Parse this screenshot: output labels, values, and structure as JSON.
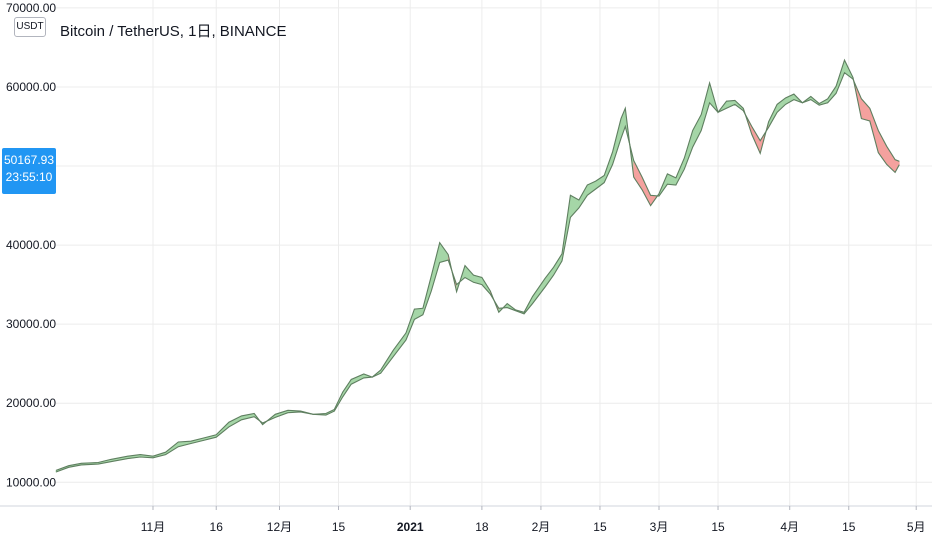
{
  "symbol": {
    "title": "Bitcoin / TetherUS, 1日, BINANCE",
    "currency": "USDT"
  },
  "price_label": {
    "value": "50167.93",
    "countdown": "23:55:10"
  },
  "colors": {
    "up_fill": "#a5d6a7",
    "down_fill": "#f4a19e",
    "line": "#5f7f60",
    "price_label_bg": "#2196f3"
  },
  "chart_data": {
    "type": "area",
    "x_axis": {
      "type": "date",
      "range": [
        "2020-10-09",
        "2021-04-30"
      ],
      "ticks": [
        {
          "date": "2020-11-01",
          "label": "11月",
          "bold": false
        },
        {
          "date": "2020-11-16",
          "label": "16",
          "bold": false
        },
        {
          "date": "2020-12-01",
          "label": "12月",
          "bold": false
        },
        {
          "date": "2020-12-15",
          "label": "15",
          "bold": false
        },
        {
          "date": "2021-01-01",
          "label": "2021",
          "bold": true
        },
        {
          "date": "2021-01-18",
          "label": "18",
          "bold": false
        },
        {
          "date": "2021-02-01",
          "label": "2月",
          "bold": false
        },
        {
          "date": "2021-02-15",
          "label": "15",
          "bold": false
        },
        {
          "date": "2021-03-01",
          "label": "3月",
          "bold": false
        },
        {
          "date": "2021-03-15",
          "label": "15",
          "bold": false
        },
        {
          "date": "2021-04-01",
          "label": "4月",
          "bold": false
        },
        {
          "date": "2021-04-15",
          "label": "15",
          "bold": false
        },
        {
          "date": "2021-05-01",
          "label": "5月",
          "bold": false
        }
      ]
    },
    "y_axis": {
      "range": [
        7000,
        71000
      ],
      "ticks": [
        {
          "value": 10000,
          "label": "10000.00"
        },
        {
          "value": 20000,
          "label": "20000.00"
        },
        {
          "value": 30000,
          "label": "30000.00"
        },
        {
          "value": 40000,
          "label": "40000.00"
        },
        {
          "value": 50000,
          "label": "50000.00"
        },
        {
          "value": 60000,
          "label": "60000.00"
        },
        {
          "value": 70000,
          "label": "70000.00"
        }
      ]
    },
    "grid": true,
    "series": [
      {
        "role": "fast",
        "points": [
          [
            "2020-10-09",
            11500
          ],
          [
            "2020-10-12",
            12100
          ],
          [
            "2020-10-15",
            12400
          ],
          [
            "2020-10-19",
            12500
          ],
          [
            "2020-10-22",
            12900
          ],
          [
            "2020-10-26",
            13300
          ],
          [
            "2020-10-29",
            13500
          ],
          [
            "2020-11-01",
            13300
          ],
          [
            "2020-11-04",
            13800
          ],
          [
            "2020-11-07",
            15100
          ],
          [
            "2020-11-10",
            15200
          ],
          [
            "2020-11-13",
            15600
          ],
          [
            "2020-11-16",
            16000
          ],
          [
            "2020-11-19",
            17600
          ],
          [
            "2020-11-22",
            18400
          ],
          [
            "2020-11-25",
            18700
          ],
          [
            "2020-11-27",
            17300
          ],
          [
            "2020-11-30",
            18600
          ],
          [
            "2020-12-03",
            19100
          ],
          [
            "2020-12-06",
            19000
          ],
          [
            "2020-12-09",
            18600
          ],
          [
            "2020-12-12",
            18700
          ],
          [
            "2020-12-14",
            19200
          ],
          [
            "2020-12-16",
            21400
          ],
          [
            "2020-12-18",
            23000
          ],
          [
            "2020-12-21",
            23700
          ],
          [
            "2020-12-23",
            23300
          ],
          [
            "2020-12-25",
            24200
          ],
          [
            "2020-12-28",
            26700
          ],
          [
            "2020-12-31",
            28900
          ],
          [
            "2021-01-02",
            31900
          ],
          [
            "2021-01-04",
            32000
          ],
          [
            "2021-01-06",
            36100
          ],
          [
            "2021-01-08",
            40300
          ],
          [
            "2021-01-10",
            38800
          ],
          [
            "2021-01-12",
            34100
          ],
          [
            "2021-01-14",
            37400
          ],
          [
            "2021-01-16",
            36200
          ],
          [
            "2021-01-18",
            35900
          ],
          [
            "2021-01-20",
            34200
          ],
          [
            "2021-01-22",
            31500
          ],
          [
            "2021-01-24",
            32600
          ],
          [
            "2021-01-26",
            31800
          ],
          [
            "2021-01-28",
            31500
          ],
          [
            "2021-01-30",
            33500
          ],
          [
            "2021-02-02",
            35800
          ],
          [
            "2021-02-04",
            37200
          ],
          [
            "2021-02-06",
            38900
          ],
          [
            "2021-02-08",
            46300
          ],
          [
            "2021-02-10",
            45700
          ],
          [
            "2021-02-12",
            47600
          ],
          [
            "2021-02-14",
            48100
          ],
          [
            "2021-02-16",
            48800
          ],
          [
            "2021-02-18",
            51800
          ],
          [
            "2021-02-20",
            56000
          ],
          [
            "2021-02-21",
            57300
          ],
          [
            "2021-02-23",
            48600
          ],
          [
            "2021-02-25",
            47000
          ],
          [
            "2021-02-27",
            45000
          ],
          [
            "2021-03-01",
            46500
          ],
          [
            "2021-03-03",
            49000
          ],
          [
            "2021-03-05",
            48500
          ],
          [
            "2021-03-07",
            51000
          ],
          [
            "2021-03-09",
            54500
          ],
          [
            "2021-03-11",
            56500
          ],
          [
            "2021-03-13",
            60500
          ],
          [
            "2021-03-15",
            56800
          ],
          [
            "2021-03-17",
            58200
          ],
          [
            "2021-03-19",
            58300
          ],
          [
            "2021-03-21",
            57300
          ],
          [
            "2021-03-23",
            54000
          ],
          [
            "2021-03-25",
            51600
          ],
          [
            "2021-03-27",
            55600
          ],
          [
            "2021-03-29",
            57800
          ],
          [
            "2021-03-31",
            58600
          ],
          [
            "2021-04-02",
            59100
          ],
          [
            "2021-04-04",
            58000
          ],
          [
            "2021-04-06",
            58800
          ],
          [
            "2021-04-08",
            57900
          ],
          [
            "2021-04-10",
            58500
          ],
          [
            "2021-04-12",
            60100
          ],
          [
            "2021-04-14",
            63400
          ],
          [
            "2021-04-16",
            61200
          ],
          [
            "2021-04-18",
            56000
          ],
          [
            "2021-04-20",
            55700
          ],
          [
            "2021-04-22",
            51700
          ],
          [
            "2021-04-24",
            50200
          ],
          [
            "2021-04-26",
            49200
          ],
          [
            "2021-04-27",
            50168
          ]
        ]
      },
      {
        "role": "slow",
        "points": [
          [
            "2020-10-09",
            11300
          ],
          [
            "2020-10-12",
            11900
          ],
          [
            "2020-10-15",
            12200
          ],
          [
            "2020-10-19",
            12300
          ],
          [
            "2020-10-22",
            12600
          ],
          [
            "2020-10-26",
            13000
          ],
          [
            "2020-10-29",
            13200
          ],
          [
            "2020-11-01",
            13100
          ],
          [
            "2020-11-04",
            13500
          ],
          [
            "2020-11-07",
            14500
          ],
          [
            "2020-11-10",
            14900
          ],
          [
            "2020-11-13",
            15300
          ],
          [
            "2020-11-16",
            15700
          ],
          [
            "2020-11-19",
            17000
          ],
          [
            "2020-11-22",
            17900
          ],
          [
            "2020-11-25",
            18300
          ],
          [
            "2020-11-27",
            17500
          ],
          [
            "2020-11-30",
            18200
          ],
          [
            "2020-12-03",
            18800
          ],
          [
            "2020-12-06",
            18900
          ],
          [
            "2020-12-09",
            18600
          ],
          [
            "2020-12-12",
            18500
          ],
          [
            "2020-12-14",
            19000
          ],
          [
            "2020-12-16",
            20800
          ],
          [
            "2020-12-18",
            22400
          ],
          [
            "2020-12-21",
            23200
          ],
          [
            "2020-12-23",
            23300
          ],
          [
            "2020-12-25",
            23800
          ],
          [
            "2020-12-28",
            25900
          ],
          [
            "2020-12-31",
            28000
          ],
          [
            "2021-01-02",
            30600
          ],
          [
            "2021-01-04",
            31200
          ],
          [
            "2021-01-06",
            34200
          ],
          [
            "2021-01-08",
            37800
          ],
          [
            "2021-01-10",
            38100
          ],
          [
            "2021-01-12",
            35000
          ],
          [
            "2021-01-14",
            35900
          ],
          [
            "2021-01-16",
            35300
          ],
          [
            "2021-01-18",
            35000
          ],
          [
            "2021-01-20",
            33800
          ],
          [
            "2021-01-22",
            32000
          ],
          [
            "2021-01-24",
            32100
          ],
          [
            "2021-01-26",
            31700
          ],
          [
            "2021-01-28",
            31300
          ],
          [
            "2021-01-30",
            32600
          ],
          [
            "2021-02-02",
            34700
          ],
          [
            "2021-02-04",
            36200
          ],
          [
            "2021-02-06",
            38000
          ],
          [
            "2021-02-08",
            43500
          ],
          [
            "2021-02-10",
            44700
          ],
          [
            "2021-02-12",
            46300
          ],
          [
            "2021-02-14",
            47100
          ],
          [
            "2021-02-16",
            47900
          ],
          [
            "2021-02-18",
            50200
          ],
          [
            "2021-02-20",
            53500
          ],
          [
            "2021-02-21",
            55000
          ],
          [
            "2021-02-23",
            50700
          ],
          [
            "2021-02-25",
            48600
          ],
          [
            "2021-02-27",
            46300
          ],
          [
            "2021-03-01",
            46200
          ],
          [
            "2021-03-03",
            47700
          ],
          [
            "2021-03-05",
            47600
          ],
          [
            "2021-03-07",
            49600
          ],
          [
            "2021-03-09",
            52400
          ],
          [
            "2021-03-11",
            54500
          ],
          [
            "2021-03-13",
            58000
          ],
          [
            "2021-03-15",
            56800
          ],
          [
            "2021-03-17",
            57300
          ],
          [
            "2021-03-19",
            57800
          ],
          [
            "2021-03-21",
            57000
          ],
          [
            "2021-03-23",
            55000
          ],
          [
            "2021-03-25",
            53200
          ],
          [
            "2021-03-27",
            54900
          ],
          [
            "2021-03-29",
            56800
          ],
          [
            "2021-03-31",
            57800
          ],
          [
            "2021-04-02",
            58400
          ],
          [
            "2021-04-04",
            58000
          ],
          [
            "2021-04-06",
            58400
          ],
          [
            "2021-04-08",
            57700
          ],
          [
            "2021-04-10",
            58000
          ],
          [
            "2021-04-12",
            59200
          ],
          [
            "2021-04-14",
            61800
          ],
          [
            "2021-04-16",
            61000
          ],
          [
            "2021-04-18",
            58500
          ],
          [
            "2021-04-20",
            57300
          ],
          [
            "2021-04-22",
            54500
          ],
          [
            "2021-04-24",
            52500
          ],
          [
            "2021-04-26",
            50800
          ],
          [
            "2021-04-27",
            50600
          ]
        ]
      }
    ]
  }
}
